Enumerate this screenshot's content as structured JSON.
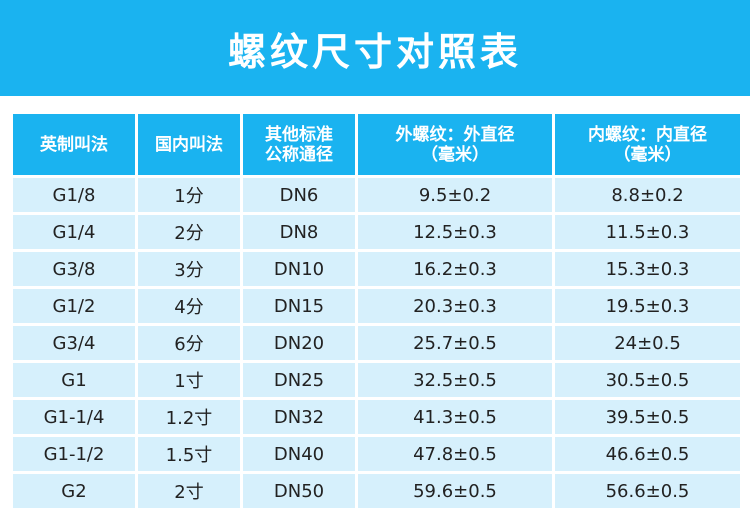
{
  "title": "螺纹尺寸对照表",
  "headers": [
    "英制叫法",
    "国内叫法",
    "其他标准\n公称通径",
    "外螺纹：外直径\n（毫米）",
    "内螺纹：内直径\n（毫米）"
  ],
  "rows": [
    [
      "G1/8",
      "1分",
      "DN6",
      "9.5±0.2",
      "8.8±0.2"
    ],
    [
      "G1/4",
      "2分",
      "DN8",
      "12.5±0.3",
      "11.5±0.3"
    ],
    [
      "G3/8",
      "3分",
      "DN10",
      "16.2±0.3",
      "15.3±0.3"
    ],
    [
      "G1/2",
      "4分",
      "DN15",
      "20.3±0.3",
      "19.5±0.3"
    ],
    [
      "G3/4",
      "6分",
      "DN20",
      "25.7±0.5",
      "24±0.5"
    ],
    [
      "G1",
      "1寸",
      "DN25",
      "32.5±0.5",
      "30.5±0.5"
    ],
    [
      "G1-1/4",
      "1.2寸",
      "DN32",
      "41.3±0.5",
      "39.5±0.5"
    ],
    [
      "G1-1/2",
      "1.5寸",
      "DN40",
      "47.8±0.5",
      "46.6±0.5"
    ],
    [
      "G2",
      "2寸",
      "DN50",
      "59.6±0.5",
      "56.6±0.5"
    ]
  ],
  "colors": {
    "accent": "#1ab3f0",
    "cell": "#d6f0fc",
    "text": "#222222"
  }
}
